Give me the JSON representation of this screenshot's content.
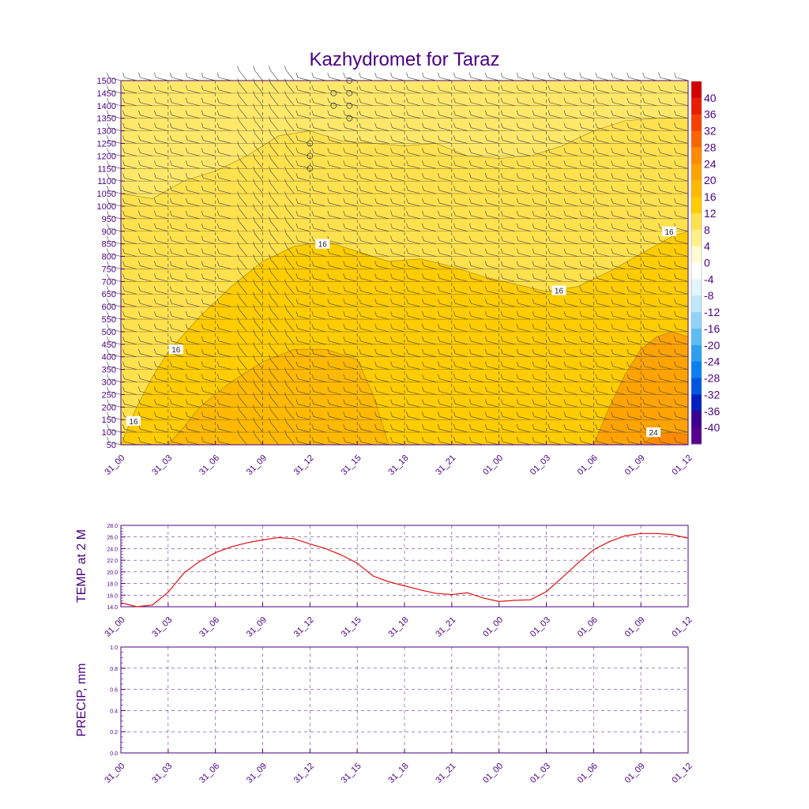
{
  "title": "Kazhydromet for Taraz",
  "colors": {
    "axis": "#4b0082",
    "grid": "#4b0082",
    "temp_line": "#e01010",
    "contour_line": "#8a6a10",
    "barb": "#555555"
  },
  "time_ticks": [
    "31_00",
    "31_03",
    "31_06",
    "31_09",
    "31_12",
    "31_15",
    "31_18",
    "31_21",
    "01_00",
    "01_03",
    "01_06",
    "01_09",
    "01_12"
  ],
  "chart_data": [
    {
      "type": "heatmap",
      "name": "vertical-profile",
      "title": "Kazhydromet for Taraz",
      "x_ticks": [
        "31_00",
        "31_03",
        "31_06",
        "31_09",
        "31_12",
        "31_15",
        "31_18",
        "31_21",
        "01_00",
        "01_03",
        "01_06",
        "01_09",
        "01_12"
      ],
      "x_range": [
        0,
        36
      ],
      "y_ticks": [
        1500,
        1450,
        1400,
        1350,
        1300,
        1250,
        1200,
        1150,
        1100,
        1050,
        1000,
        950,
        900,
        850,
        800,
        750,
        700,
        650,
        600,
        550,
        500,
        450,
        400,
        350,
        300,
        250,
        200,
        150,
        100,
        50
      ],
      "ylim": [
        50,
        1500
      ],
      "colorbar": {
        "levels": [
          "40",
          "36",
          "32",
          "28",
          "24",
          "20",
          "16",
          "12",
          "8",
          "4",
          "0",
          "-4",
          "-8",
          "-12",
          "-16",
          "-20",
          "-24",
          "-28",
          "-32",
          "-36",
          "-40"
        ],
        "colors": [
          "#d40000",
          "#e81c00",
          "#f73f00",
          "#fb6400",
          "#fe8a00",
          "#ffa300",
          "#ffb900",
          "#ffcc00",
          "#ffe14d",
          "#fff08a",
          "#fffbd0",
          "#ffffff",
          "#e0f5fc",
          "#bfe9fb",
          "#8fd4f7",
          "#5ebcf4",
          "#2e9ff0",
          "#0a7ff0",
          "#0055e0",
          "#0020c0",
          "#3b0090",
          "#560090"
        ]
      },
      "contour_labels": [
        {
          "text": "16",
          "x": 12.8,
          "y": 850
        },
        {
          "text": "16",
          "x": 27.8,
          "y": 665
        },
        {
          "text": "16",
          "x": 34.8,
          "y": 900
        },
        {
          "text": "16",
          "x": 3.5,
          "y": 430
        },
        {
          "text": "16",
          "x": 0.8,
          "y": 145
        },
        {
          "text": "24",
          "x": 33.8,
          "y": 100
        }
      ],
      "bands": [
        {
          "fill": "#ffe14d",
          "boundary": [
            [
              0,
              1050
            ],
            [
              2,
              1030
            ],
            [
              4,
              1100
            ],
            [
              6,
              1140
            ],
            [
              8,
              1200
            ],
            [
              10,
              1280
            ],
            [
              12,
              1300
            ],
            [
              14,
              1260
            ],
            [
              16,
              1250
            ],
            [
              18,
              1240
            ],
            [
              20,
              1250
            ],
            [
              22,
              1200
            ],
            [
              24,
              1190
            ],
            [
              26,
              1200
            ],
            [
              28,
              1240
            ],
            [
              30,
              1300
            ],
            [
              32,
              1340
            ],
            [
              34,
              1350
            ],
            [
              36,
              1350
            ]
          ]
        },
        {
          "fill": "#ffcc00",
          "boundary": [
            [
              0,
              50
            ],
            [
              1,
              200
            ],
            [
              2,
              320
            ],
            [
              3,
              420
            ],
            [
              5,
              560
            ],
            [
              7,
              680
            ],
            [
              9,
              780
            ],
            [
              11,
              840
            ],
            [
              13,
              860
            ],
            [
              15,
              820
            ],
            [
              17,
              780
            ],
            [
              19,
              790
            ],
            [
              21,
              760
            ],
            [
              23,
              720
            ],
            [
              25,
              690
            ],
            [
              27,
              660
            ],
            [
              29,
              680
            ],
            [
              31,
              740
            ],
            [
              33,
              810
            ],
            [
              35,
              880
            ],
            [
              36,
              900
            ]
          ]
        },
        {
          "fill": "#ffb900",
          "boundary": [
            [
              0,
              50
            ],
            [
              3,
              50
            ],
            [
              4,
              120
            ],
            [
              5,
              200
            ],
            [
              7,
              300
            ],
            [
              9,
              380
            ],
            [
              11,
              430
            ],
            [
              13,
              430
            ],
            [
              15,
              390
            ],
            [
              16,
              250
            ],
            [
              17,
              50
            ],
            [
              36,
              50
            ]
          ]
        },
        {
          "fill": "#ffa300",
          "boundary": [
            [
              30,
              50
            ],
            [
              31,
              200
            ],
            [
              32,
              330
            ],
            [
              33,
              430
            ],
            [
              34,
              480
            ],
            [
              35,
              500
            ],
            [
              36,
              480
            ]
          ]
        },
        {
          "fill": "#fe8a00",
          "boundary": [
            [
              33,
              50
            ],
            [
              34,
              90
            ],
            [
              35,
              100
            ],
            [
              36,
              90
            ]
          ]
        }
      ]
    },
    {
      "type": "line",
      "name": "temp-2m",
      "ylabel": "TEMP at 2 M",
      "x_ticks": [
        "31_00",
        "31_03",
        "31_06",
        "31_09",
        "31_12",
        "31_15",
        "31_18",
        "31_21",
        "01_00",
        "01_03",
        "01_06",
        "01_09",
        "01_12"
      ],
      "y_ticks": [
        "28.0",
        "26.0",
        "24.0",
        "22.0",
        "20.0",
        "18.0",
        "16.0",
        "14.0"
      ],
      "ylim": [
        14,
        28
      ],
      "x": [
        0,
        1,
        2,
        3,
        4,
        5,
        6,
        7,
        8,
        9,
        10,
        11,
        12,
        13,
        14,
        15,
        16,
        17,
        18,
        19,
        20,
        21,
        22,
        23,
        24,
        25,
        26,
        27,
        28,
        29,
        30,
        31,
        32,
        33,
        34,
        35,
        36
      ],
      "values": [
        14.7,
        14.0,
        14.3,
        16.5,
        19.8,
        21.8,
        23.3,
        24.3,
        25.0,
        25.5,
        25.9,
        25.7,
        24.8,
        24.0,
        22.9,
        21.5,
        19.3,
        18.3,
        17.6,
        16.9,
        16.3,
        16.1,
        16.4,
        15.5,
        14.9,
        15.1,
        15.2,
        16.6,
        19.0,
        21.5,
        23.8,
        25.2,
        26.2,
        26.6,
        26.6,
        26.4,
        25.8
      ]
    },
    {
      "type": "line",
      "name": "precip",
      "ylabel": "PRECIP, mm",
      "x_ticks": [
        "31_00",
        "31_03",
        "31_06",
        "31_09",
        "31_12",
        "31_15",
        "31_18",
        "31_21",
        "01_00",
        "01_03",
        "01_06",
        "01_09",
        "01_12"
      ],
      "y_ticks": [
        "1.0",
        "0.8",
        "0.6",
        "0.4",
        "0.2",
        "0.0"
      ],
      "ylim": [
        0,
        1
      ],
      "x": [],
      "values": []
    }
  ]
}
